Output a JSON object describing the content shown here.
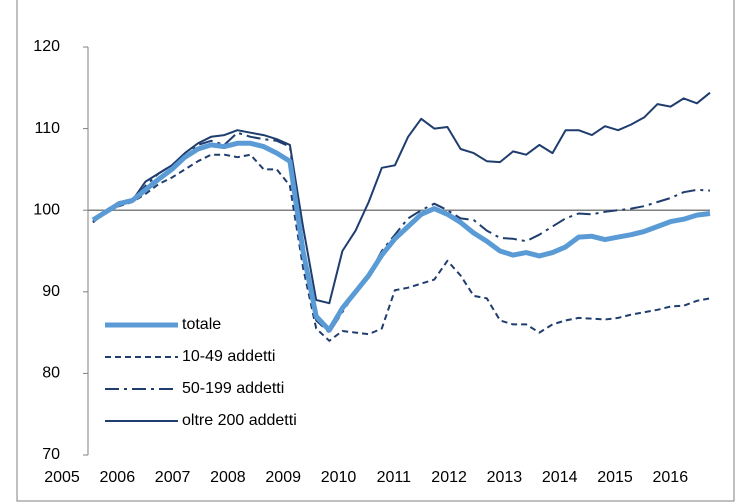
{
  "chart_data": {
    "type": "line",
    "categories": [
      "2005",
      null,
      null,
      null,
      "2006",
      null,
      null,
      null,
      "2007",
      null,
      null,
      null,
      "2008",
      null,
      null,
      null,
      "2009",
      null,
      null,
      null,
      "2010",
      null,
      null,
      null,
      "2011",
      null,
      null,
      null,
      "2012",
      null,
      null,
      null,
      "2013",
      null,
      null,
      null,
      "2014",
      null,
      null,
      null,
      "2015",
      null,
      null,
      null,
      "2016",
      null,
      null,
      null
    ],
    "series": [
      {
        "name": "totale",
        "color": "#5b9bd5",
        "width": 5,
        "dash": "none",
        "values": [
          98.8,
          99.8,
          100.8,
          101.2,
          102.5,
          103.8,
          105,
          106.5,
          107.5,
          108,
          107.8,
          108.2,
          108.2,
          107.8,
          107,
          106,
          95,
          87,
          85.3,
          88,
          90,
          92,
          94.5,
          96.5,
          98,
          99.5,
          100.2,
          99.5,
          98.5,
          97.2,
          96.2,
          95,
          94.5,
          94.8,
          94.4,
          94.8,
          95.5,
          96.7,
          96.8,
          96.4,
          96.7,
          97,
          97.4,
          98,
          98.6,
          98.9,
          99.4,
          99.6
        ]
      },
      {
        "name": "10-49 addetti",
        "color": "#1f3d6e",
        "width": 2,
        "dash": "6 4",
        "values": [
          98.5,
          99.8,
          100.5,
          101,
          102,
          103.2,
          104,
          105,
          106,
          106.8,
          106.8,
          106.5,
          106.8,
          105,
          105,
          103,
          93,
          85.5,
          84,
          85.2,
          85,
          84.8,
          85.5,
          90.2,
          90.5,
          91,
          91.5,
          93.8,
          92,
          89.5,
          89.2,
          86.5,
          86,
          86,
          85,
          86,
          86.5,
          86.8,
          86.7,
          86.6,
          86.8,
          87.2,
          87.5,
          87.8,
          88.2,
          88.3,
          88.9,
          89.2
        ]
      },
      {
        "name": "50-199 addetti",
        "color": "#1f3d6e",
        "width": 2,
        "dash": "14 5 3 5",
        "values": [
          98.6,
          100,
          101,
          101,
          103,
          104.5,
          105.5,
          106.5,
          108,
          108.5,
          108,
          109.5,
          109,
          108.7,
          108.5,
          107.8,
          96,
          86.5,
          85,
          87.5,
          90,
          92,
          95,
          97,
          99,
          100,
          100.8,
          100,
          99,
          98.8,
          97.5,
          96.6,
          96.5,
          96.2,
          97,
          98,
          99,
          99.6,
          99.5,
          99.8,
          100,
          100.2,
          100.5,
          101,
          101.5,
          102.2,
          102.5,
          102.4
        ]
      },
      {
        "name": "oltre 200 addetti",
        "color": "#1f3d6e",
        "width": 2,
        "dash": "none",
        "values": [
          98.5,
          100,
          101,
          101.2,
          103.5,
          104.5,
          105.5,
          107,
          108.2,
          109,
          109.2,
          109.8,
          109.5,
          109.2,
          108.7,
          108,
          98,
          89,
          88.6,
          95,
          97.5,
          101,
          105.2,
          105.5,
          109,
          111.2,
          110,
          110.2,
          107.5,
          107,
          106,
          105.9,
          107.2,
          106.8,
          108,
          107,
          109.8,
          109.8,
          109.2,
          110.3,
          109.8,
          110.5,
          111.4,
          113,
          112.7,
          113.7,
          113.1,
          114.4
        ]
      }
    ],
    "ylim": [
      70,
      120
    ],
    "yticks": [
      70,
      80,
      90,
      100,
      110,
      120
    ],
    "reference_line": 100,
    "legend": "lower left"
  }
}
